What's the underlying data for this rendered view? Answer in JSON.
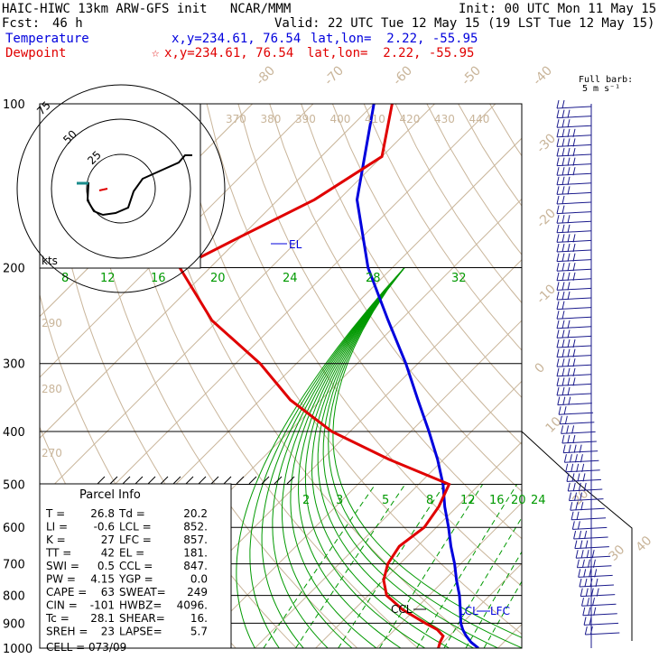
{
  "header": {
    "title": "HAIC-HIWC 13km ARW-GFS init   NCAR/MMM",
    "init": "Init: 00 UTC Mon 11 May 15",
    "fcst_label": "Fcst:",
    "fcst_value": "46 h",
    "valid": "Valid: 22 UTC Tue 12 May 15 (19 LST Tue 12 May 15)",
    "temp_label": "Temperature",
    "temp_xy": "x,y=234.61, 76.54",
    "temp_latlon": "lat,lon=  2.22, -55.95",
    "dew_label": "Dewpoint",
    "dew_star": "☆",
    "dew_xy": "x,y=234.61, 76.54",
    "dew_latlon": "lat,lon=  2.22, -55.95",
    "barb_note_1": "Full barb:",
    "barb_note_2": "5 m s⁻¹"
  },
  "colors": {
    "temperature": "#0000dd",
    "dewpoint": "#e00000",
    "isotherm": "#c9b59a",
    "mixing_ratio": "#009900",
    "barb": "#1a1a8c"
  },
  "chart_data": {
    "type": "line",
    "chart_kind": "skew-T log-P sounding",
    "pressure_levels": [
      "100",
      "200",
      "300",
      "400",
      "500",
      "600",
      "700",
      "800",
      "900",
      "1000"
    ],
    "isotherm_labels": [
      "-80",
      "-70",
      "-60",
      "-50",
      "-40",
      "-30",
      "-20",
      "-10",
      "0",
      "10",
      "20",
      "30",
      "40"
    ],
    "theta_labels": [
      "370",
      "380",
      "390",
      "400",
      "410",
      "420",
      "430",
      "440"
    ],
    "theta_low_labels": [
      "290",
      "280",
      "270"
    ],
    "mixing_ratio_top": [
      "8",
      "12",
      "16",
      "20",
      "24",
      "28",
      "32"
    ],
    "mixing_ratio_bottom": [
      "2",
      "3",
      "5",
      "8",
      "12",
      "16",
      "20",
      "24"
    ],
    "series": [
      {
        "name": "Temperature",
        "p": [
          1000,
          975,
          950,
          925,
          900,
          850,
          800,
          750,
          700,
          650,
          600,
          550,
          500,
          450,
          400,
          350,
          300,
          250,
          200,
          150,
          100
        ],
        "t": [
          26.8,
          24.6,
          22.8,
          21.2,
          19.8,
          17.5,
          15,
          12,
          9,
          5.5,
          2,
          -2,
          -6,
          -11,
          -17,
          -24,
          -32,
          -42,
          -54,
          -67,
          -80
        ]
      },
      {
        "name": "Dewpoint",
        "p": [
          1000,
          975,
          950,
          925,
          900,
          850,
          800,
          750,
          700,
          650,
          600,
          550,
          500,
          450,
          400,
          350,
          300,
          250,
          200,
          175,
          150,
          125,
          100
        ],
        "t": [
          20.2,
          19.5,
          19,
          17,
          14,
          8,
          3,
          0,
          -2,
          -3,
          -2,
          -3,
          -5,
          -19,
          -33,
          -45,
          -56,
          -71,
          -85,
          -80,
          -74,
          -70,
          -77
        ]
      }
    ],
    "markers": {
      "el": "EL",
      "ccl": "CCL",
      "lcl": "LCL",
      "lfc": "LFC",
      "hodo_units": "kts",
      "hodo_rings": [
        "25",
        "50",
        "75"
      ]
    },
    "parcel_info": {
      "title": "Parcel Info",
      "rows": [
        [
          "T  =",
          "26.8",
          "Td =",
          "20.2"
        ],
        [
          "LI =",
          "-0.6",
          "LCL =",
          "852."
        ],
        [
          "K  =",
          "27",
          "LFC =",
          "857."
        ],
        [
          "TT =",
          "42",
          "EL =",
          "181."
        ],
        [
          "SWI =",
          "0.5",
          "CCL =",
          "847."
        ],
        [
          "PW =",
          "4.15",
          "YGP =",
          "0.0"
        ],
        [
          "CAPE =",
          "63",
          "SWEAT=",
          "249"
        ],
        [
          "CIN =",
          "-101",
          "HWBZ=",
          "4096."
        ],
        [
          "Tc =",
          "28.1",
          "SHEAR=",
          "16."
        ],
        [
          "SREH =",
          "23",
          "LAPSE=",
          "5.7"
        ]
      ],
      "cell": "CELL = 073/09"
    }
  }
}
